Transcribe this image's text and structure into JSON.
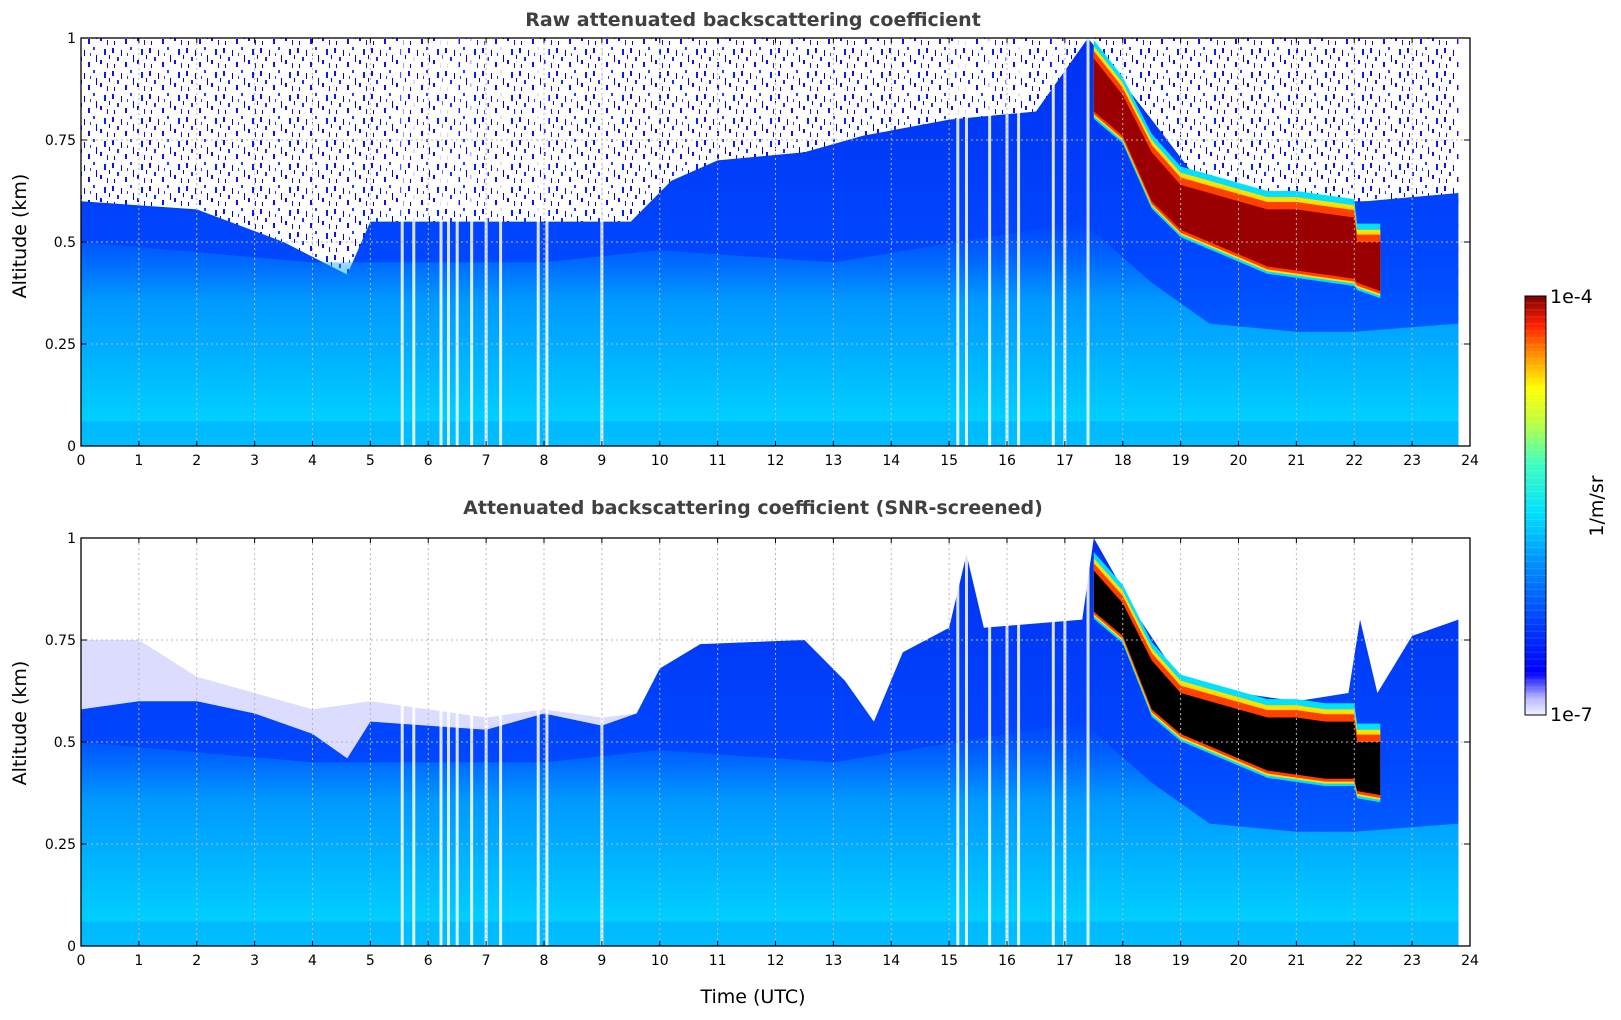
{
  "chart_data": [
    {
      "type": "heatmap",
      "title": "Raw attenuated backscattering coefficient",
      "xlabel": "",
      "ylabel": "Altitude (km)",
      "xlim": [
        0,
        24
      ],
      "ylim": [
        0,
        1
      ],
      "x_ticks": [
        "0",
        "1",
        "2",
        "3",
        "4",
        "5",
        "6",
        "7",
        "8",
        "9",
        "10",
        "11",
        "12",
        "13",
        "14",
        "15",
        "16",
        "17",
        "18",
        "19",
        "20",
        "21",
        "22",
        "23",
        "24"
      ],
      "y_ticks": [
        "0",
        "0.25",
        "0.5",
        "0.75",
        "1"
      ],
      "grid": true,
      "data_end_hour": 23.8,
      "noise_top_km": [
        [
          0,
          0.6
        ],
        [
          2,
          0.58
        ],
        [
          3.5,
          0.5
        ],
        [
          4.6,
          0.42
        ],
        [
          5,
          0.55
        ],
        [
          8,
          0.55
        ],
        [
          9.5,
          0.55
        ],
        [
          10.2,
          0.65
        ],
        [
          11,
          0.7
        ],
        [
          12.5,
          0.72
        ],
        [
          13.5,
          0.76
        ],
        [
          15,
          0.8
        ],
        [
          16.5,
          0.82
        ],
        [
          17.4,
          1.0
        ],
        [
          18.5,
          0.8
        ],
        [
          19.2,
          0.67
        ],
        [
          20.2,
          0.6
        ],
        [
          21.5,
          0.6
        ],
        [
          22.2,
          0.6
        ],
        [
          23.8,
          0.62
        ]
      ],
      "aerosol_layer_top_km": [
        [
          0,
          0.5
        ],
        [
          4,
          0.45
        ],
        [
          8,
          0.45
        ],
        [
          10,
          0.48
        ],
        [
          13,
          0.45
        ],
        [
          17.3,
          0.55
        ],
        [
          18.5,
          0.4
        ],
        [
          19.5,
          0.3
        ],
        [
          21,
          0.28
        ],
        [
          22,
          0.28
        ],
        [
          23.8,
          0.3
        ]
      ],
      "cloud_layer": [
        [
          17.5,
          0.95,
          0.82
        ],
        [
          18.0,
          0.86,
          0.76
        ],
        [
          18.5,
          0.72,
          0.6
        ],
        [
          19.0,
          0.64,
          0.53
        ],
        [
          19.5,
          0.62,
          0.5
        ],
        [
          20.0,
          0.6,
          0.47
        ],
        [
          20.5,
          0.58,
          0.44
        ],
        [
          21.0,
          0.58,
          0.43
        ],
        [
          21.5,
          0.57,
          0.42
        ],
        [
          22.0,
          0.56,
          0.41
        ],
        [
          22.05,
          0.5,
          0.4
        ],
        [
          22.45,
          0.5,
          0.38
        ]
      ],
      "missing_profiles_hour": [
        5.55,
        5.75,
        6.22,
        6.35,
        6.5,
        6.75,
        7.0,
        7.25,
        7.9,
        8.05,
        9.0,
        15.15,
        15.3,
        15.7,
        16.0,
        16.2,
        16.8,
        17.0,
        17.4
      ]
    },
    {
      "type": "heatmap",
      "title": "Attenuated backscattering coefficient (SNR-screened)",
      "xlabel": "Time (UTC)",
      "ylabel": "Altitude (km)",
      "xlim": [
        0,
        24
      ],
      "ylim": [
        0,
        1
      ],
      "x_ticks": [
        "0",
        "1",
        "2",
        "3",
        "4",
        "5",
        "6",
        "7",
        "8",
        "9",
        "10",
        "11",
        "12",
        "13",
        "14",
        "15",
        "16",
        "17",
        "18",
        "19",
        "20",
        "21",
        "22",
        "23",
        "24"
      ],
      "y_ticks": [
        "0",
        "0.25",
        "0.5",
        "0.75",
        "1"
      ],
      "grid": true,
      "data_end_hour": 23.8,
      "boundary_layer_top_km": [
        [
          0,
          0.58
        ],
        [
          1,
          0.6
        ],
        [
          2,
          0.6
        ],
        [
          3,
          0.57
        ],
        [
          4,
          0.52
        ],
        [
          4.6,
          0.46
        ],
        [
          5,
          0.55
        ],
        [
          7,
          0.53
        ],
        [
          8,
          0.57
        ],
        [
          9,
          0.54
        ],
        [
          9.6,
          0.57
        ],
        [
          10,
          0.68
        ],
        [
          10.7,
          0.74
        ],
        [
          12.5,
          0.75
        ],
        [
          13.2,
          0.65
        ],
        [
          13.7,
          0.55
        ],
        [
          14.2,
          0.72
        ],
        [
          15,
          0.78
        ],
        [
          15.3,
          0.96
        ],
        [
          15.6,
          0.78
        ],
        [
          17.3,
          0.8
        ],
        [
          17.5,
          1.0
        ],
        [
          18.3,
          0.8
        ],
        [
          19,
          0.65
        ],
        [
          20,
          0.62
        ],
        [
          21,
          0.6
        ],
        [
          21.9,
          0.62
        ],
        [
          22.1,
          0.8
        ],
        [
          22.4,
          0.62
        ],
        [
          23,
          0.76
        ],
        [
          23.8,
          0.8
        ]
      ],
      "screened_haze_top_km": [
        [
          0,
          0.75
        ],
        [
          1,
          0.75
        ],
        [
          2,
          0.66
        ],
        [
          3,
          0.62
        ],
        [
          4,
          0.58
        ],
        [
          5,
          0.6
        ],
        [
          6,
          0.58
        ],
        [
          7,
          0.56
        ],
        [
          8,
          0.58
        ],
        [
          9,
          0.56
        ],
        [
          9.6,
          0.57
        ]
      ],
      "aerosol_layer_top_km": [
        [
          0,
          0.5
        ],
        [
          4,
          0.45
        ],
        [
          8,
          0.45
        ],
        [
          10,
          0.48
        ],
        [
          13,
          0.45
        ],
        [
          17.3,
          0.55
        ],
        [
          18.5,
          0.4
        ],
        [
          19.5,
          0.3
        ],
        [
          21,
          0.28
        ],
        [
          22,
          0.28
        ],
        [
          23.8,
          0.3
        ]
      ],
      "cloud_layer": [
        [
          17.5,
          0.92,
          0.82
        ],
        [
          18.0,
          0.84,
          0.76
        ],
        [
          18.5,
          0.7,
          0.58
        ],
        [
          19.0,
          0.62,
          0.52
        ],
        [
          19.5,
          0.6,
          0.49
        ],
        [
          20.0,
          0.58,
          0.46
        ],
        [
          20.5,
          0.56,
          0.43
        ],
        [
          21.0,
          0.56,
          0.42
        ],
        [
          21.5,
          0.55,
          0.41
        ],
        [
          22.0,
          0.55,
          0.41
        ],
        [
          22.05,
          0.5,
          0.38
        ],
        [
          22.45,
          0.5,
          0.37
        ]
      ],
      "missing_profiles_hour": [
        5.55,
        5.75,
        6.22,
        6.35,
        6.5,
        6.75,
        7.0,
        7.25,
        7.9,
        8.05,
        9.0,
        15.15,
        15.3,
        15.7,
        16.0,
        16.2,
        16.8,
        17.0,
        17.4
      ]
    }
  ],
  "colorbar": {
    "label": "1/m/sr",
    "min_label": "1e-7",
    "max_label": "1e-4",
    "min": 1e-07,
    "max": 0.0001,
    "scale": "log",
    "colormap": "jet"
  }
}
